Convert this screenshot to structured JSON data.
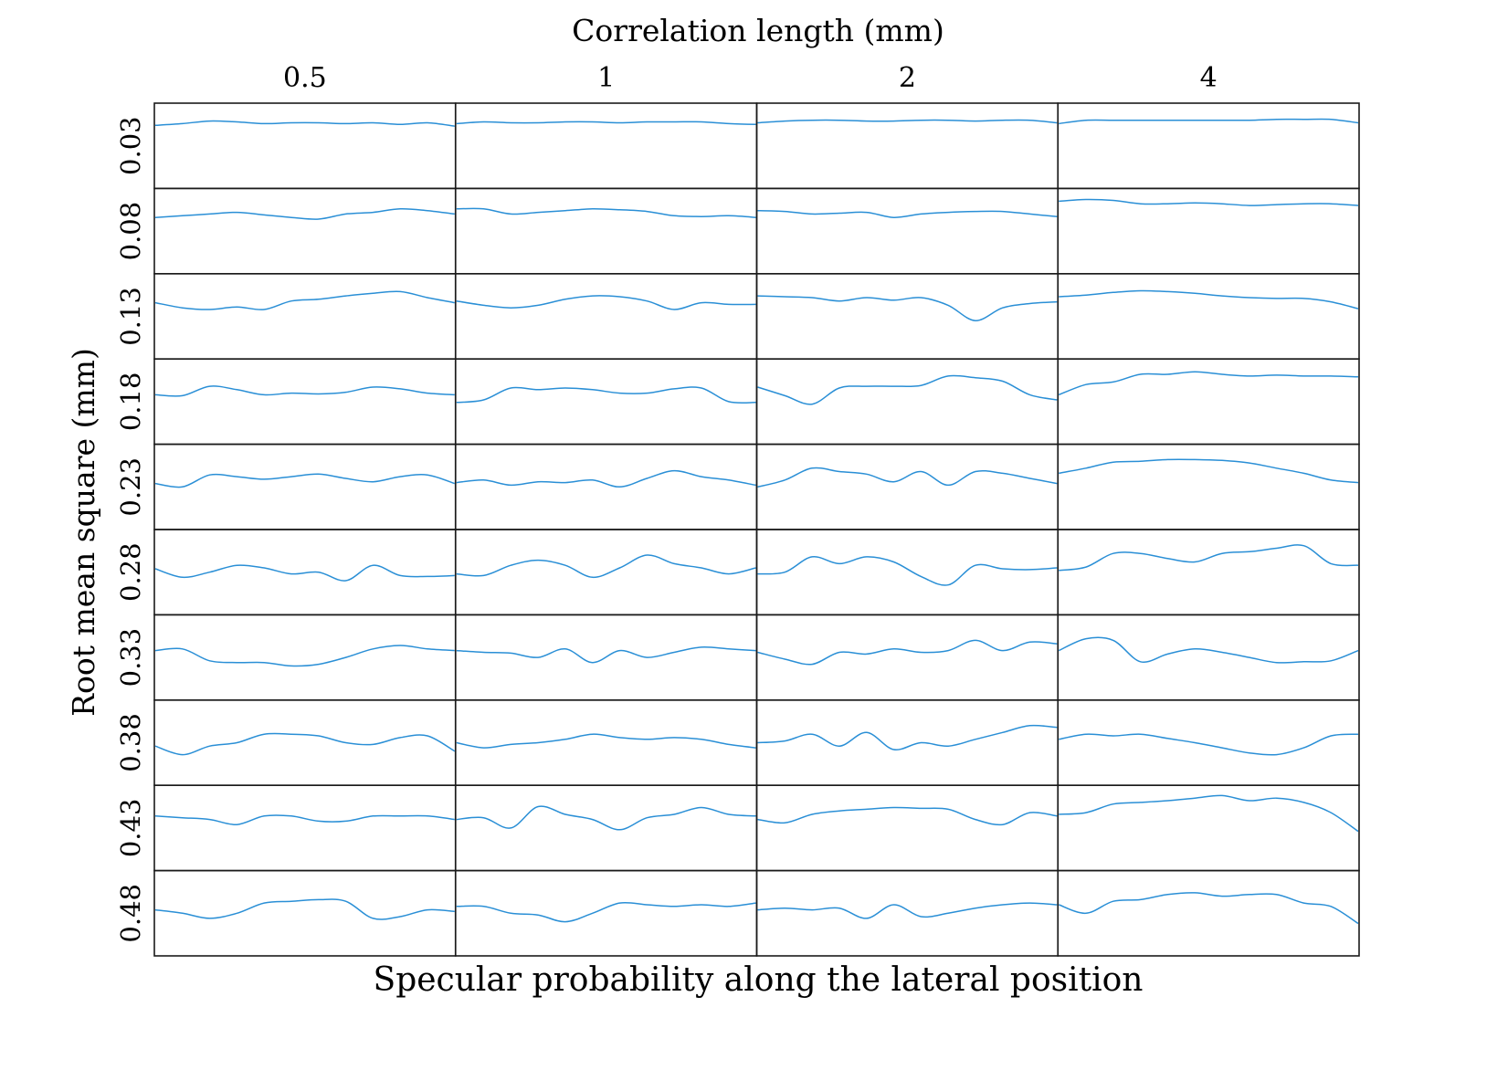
{
  "chart_data": {
    "type": "line",
    "layout": "grid of small multiples",
    "title": "Correlation length (mm)",
    "xlabel": "Specular probability along the lateral position",
    "ylabel": "Root mean square (mm)",
    "column_labels": [
      "0.5",
      "1",
      "2",
      "4"
    ],
    "row_labels": [
      "0.03",
      "0.08",
      "0.13",
      "0.18",
      "0.23",
      "0.28",
      "0.33",
      "0.38",
      "0.43",
      "0.48"
    ],
    "axis_ticks_shown": false,
    "grid": false,
    "legend": "none",
    "series_color": "#2a8fd6",
    "panel_series_note": "each value list is relative specular probability sampled uniformly along the lateral position (0 = panel bottom, 1 = panel top)",
    "panels": [
      [
        [
          0.74,
          0.76,
          0.79,
          0.78,
          0.76,
          0.77,
          0.77,
          0.76,
          0.77,
          0.75,
          0.77,
          0.73
        ],
        [
          0.76,
          0.78,
          0.77,
          0.77,
          0.78,
          0.78,
          0.77,
          0.78,
          0.78,
          0.78,
          0.76,
          0.75
        ],
        [
          0.77,
          0.79,
          0.8,
          0.8,
          0.79,
          0.79,
          0.8,
          0.8,
          0.79,
          0.8,
          0.8,
          0.77
        ],
        [
          0.76,
          0.8,
          0.8,
          0.8,
          0.8,
          0.8,
          0.8,
          0.8,
          0.81,
          0.81,
          0.81,
          0.77
        ]
      ],
      [
        [
          0.66,
          0.68,
          0.7,
          0.72,
          0.69,
          0.66,
          0.64,
          0.7,
          0.72,
          0.76,
          0.74,
          0.7
        ],
        [
          0.76,
          0.76,
          0.7,
          0.72,
          0.74,
          0.76,
          0.75,
          0.73,
          0.68,
          0.67,
          0.68,
          0.66
        ],
        [
          0.74,
          0.73,
          0.7,
          0.71,
          0.72,
          0.66,
          0.7,
          0.72,
          0.73,
          0.73,
          0.7,
          0.67
        ],
        [
          0.85,
          0.87,
          0.86,
          0.82,
          0.82,
          0.83,
          0.82,
          0.8,
          0.81,
          0.82,
          0.82,
          0.8
        ]
      ],
      [
        [
          0.66,
          0.6,
          0.58,
          0.61,
          0.58,
          0.68,
          0.7,
          0.74,
          0.77,
          0.79,
          0.72,
          0.66
        ],
        [
          0.68,
          0.63,
          0.6,
          0.63,
          0.7,
          0.74,
          0.73,
          0.68,
          0.58,
          0.66,
          0.64,
          0.64
        ],
        [
          0.74,
          0.73,
          0.72,
          0.68,
          0.72,
          0.69,
          0.72,
          0.63,
          0.45,
          0.6,
          0.65,
          0.67
        ],
        [
          0.73,
          0.75,
          0.78,
          0.8,
          0.79,
          0.77,
          0.74,
          0.72,
          0.71,
          0.71,
          0.67,
          0.59
        ]
      ],
      [
        [
          0.58,
          0.57,
          0.68,
          0.64,
          0.58,
          0.6,
          0.59,
          0.61,
          0.67,
          0.65,
          0.6,
          0.58
        ],
        [
          0.49,
          0.52,
          0.66,
          0.64,
          0.66,
          0.64,
          0.6,
          0.6,
          0.65,
          0.66,
          0.5,
          0.49
        ],
        [
          0.67,
          0.57,
          0.47,
          0.66,
          0.68,
          0.68,
          0.69,
          0.8,
          0.78,
          0.74,
          0.58,
          0.52
        ],
        [
          0.58,
          0.7,
          0.73,
          0.82,
          0.82,
          0.85,
          0.82,
          0.8,
          0.81,
          0.8,
          0.8,
          0.79
        ]
      ],
      [
        [
          0.54,
          0.5,
          0.64,
          0.62,
          0.59,
          0.62,
          0.65,
          0.6,
          0.56,
          0.62,
          0.64,
          0.54
        ],
        [
          0.55,
          0.58,
          0.52,
          0.56,
          0.55,
          0.58,
          0.5,
          0.6,
          0.69,
          0.62,
          0.58,
          0.52
        ],
        [
          0.5,
          0.58,
          0.72,
          0.68,
          0.65,
          0.56,
          0.68,
          0.52,
          0.68,
          0.66,
          0.6,
          0.54
        ],
        [
          0.66,
          0.72,
          0.79,
          0.8,
          0.82,
          0.82,
          0.81,
          0.78,
          0.72,
          0.66,
          0.58,
          0.55
        ]
      ],
      [
        [
          0.54,
          0.44,
          0.5,
          0.58,
          0.55,
          0.48,
          0.5,
          0.4,
          0.58,
          0.46,
          0.45,
          0.46
        ],
        [
          0.48,
          0.46,
          0.58,
          0.64,
          0.58,
          0.44,
          0.55,
          0.7,
          0.6,
          0.55,
          0.48,
          0.55
        ],
        [
          0.48,
          0.5,
          0.68,
          0.6,
          0.68,
          0.62,
          0.45,
          0.35,
          0.58,
          0.54,
          0.53,
          0.55
        ],
        [
          0.52,
          0.56,
          0.72,
          0.72,
          0.66,
          0.62,
          0.72,
          0.74,
          0.78,
          0.81,
          0.6,
          0.58
        ]
      ],
      [
        [
          0.58,
          0.6,
          0.46,
          0.44,
          0.44,
          0.4,
          0.42,
          0.5,
          0.6,
          0.64,
          0.6,
          0.58
        ],
        [
          0.58,
          0.56,
          0.55,
          0.5,
          0.6,
          0.44,
          0.58,
          0.5,
          0.56,
          0.62,
          0.6,
          0.58
        ],
        [
          0.56,
          0.48,
          0.42,
          0.56,
          0.54,
          0.6,
          0.56,
          0.58,
          0.7,
          0.58,
          0.68,
          0.66
        ],
        [
          0.58,
          0.72,
          0.7,
          0.45,
          0.54,
          0.6,
          0.56,
          0.5,
          0.44,
          0.45,
          0.46,
          0.58
        ]
      ],
      [
        [
          0.46,
          0.36,
          0.46,
          0.5,
          0.6,
          0.6,
          0.58,
          0.5,
          0.48,
          0.56,
          0.58,
          0.4
        ],
        [
          0.5,
          0.44,
          0.48,
          0.5,
          0.54,
          0.6,
          0.56,
          0.54,
          0.56,
          0.54,
          0.48,
          0.44
        ],
        [
          0.5,
          0.52,
          0.6,
          0.46,
          0.62,
          0.42,
          0.5,
          0.46,
          0.54,
          0.62,
          0.7,
          0.68
        ],
        [
          0.54,
          0.6,
          0.58,
          0.6,
          0.55,
          0.5,
          0.44,
          0.38,
          0.36,
          0.44,
          0.58,
          0.6
        ]
      ],
      [
        [
          0.64,
          0.62,
          0.6,
          0.54,
          0.64,
          0.64,
          0.58,
          0.58,
          0.64,
          0.64,
          0.64,
          0.6
        ],
        [
          0.6,
          0.62,
          0.5,
          0.75,
          0.66,
          0.6,
          0.48,
          0.62,
          0.66,
          0.74,
          0.66,
          0.64
        ],
        [
          0.6,
          0.56,
          0.66,
          0.7,
          0.72,
          0.74,
          0.73,
          0.72,
          0.6,
          0.54,
          0.68,
          0.64
        ],
        [
          0.66,
          0.68,
          0.78,
          0.8,
          0.82,
          0.85,
          0.88,
          0.82,
          0.85,
          0.8,
          0.68,
          0.46
        ]
      ],
      [
        [
          0.54,
          0.5,
          0.44,
          0.5,
          0.62,
          0.64,
          0.66,
          0.64,
          0.44,
          0.46,
          0.54,
          0.52
        ],
        [
          0.58,
          0.58,
          0.5,
          0.48,
          0.4,
          0.5,
          0.62,
          0.6,
          0.58,
          0.6,
          0.58,
          0.62
        ],
        [
          0.54,
          0.56,
          0.54,
          0.56,
          0.44,
          0.6,
          0.46,
          0.5,
          0.56,
          0.6,
          0.62,
          0.6
        ],
        [
          0.6,
          0.5,
          0.64,
          0.66,
          0.72,
          0.74,
          0.7,
          0.72,
          0.72,
          0.62,
          0.58,
          0.38
        ]
      ]
    ]
  }
}
